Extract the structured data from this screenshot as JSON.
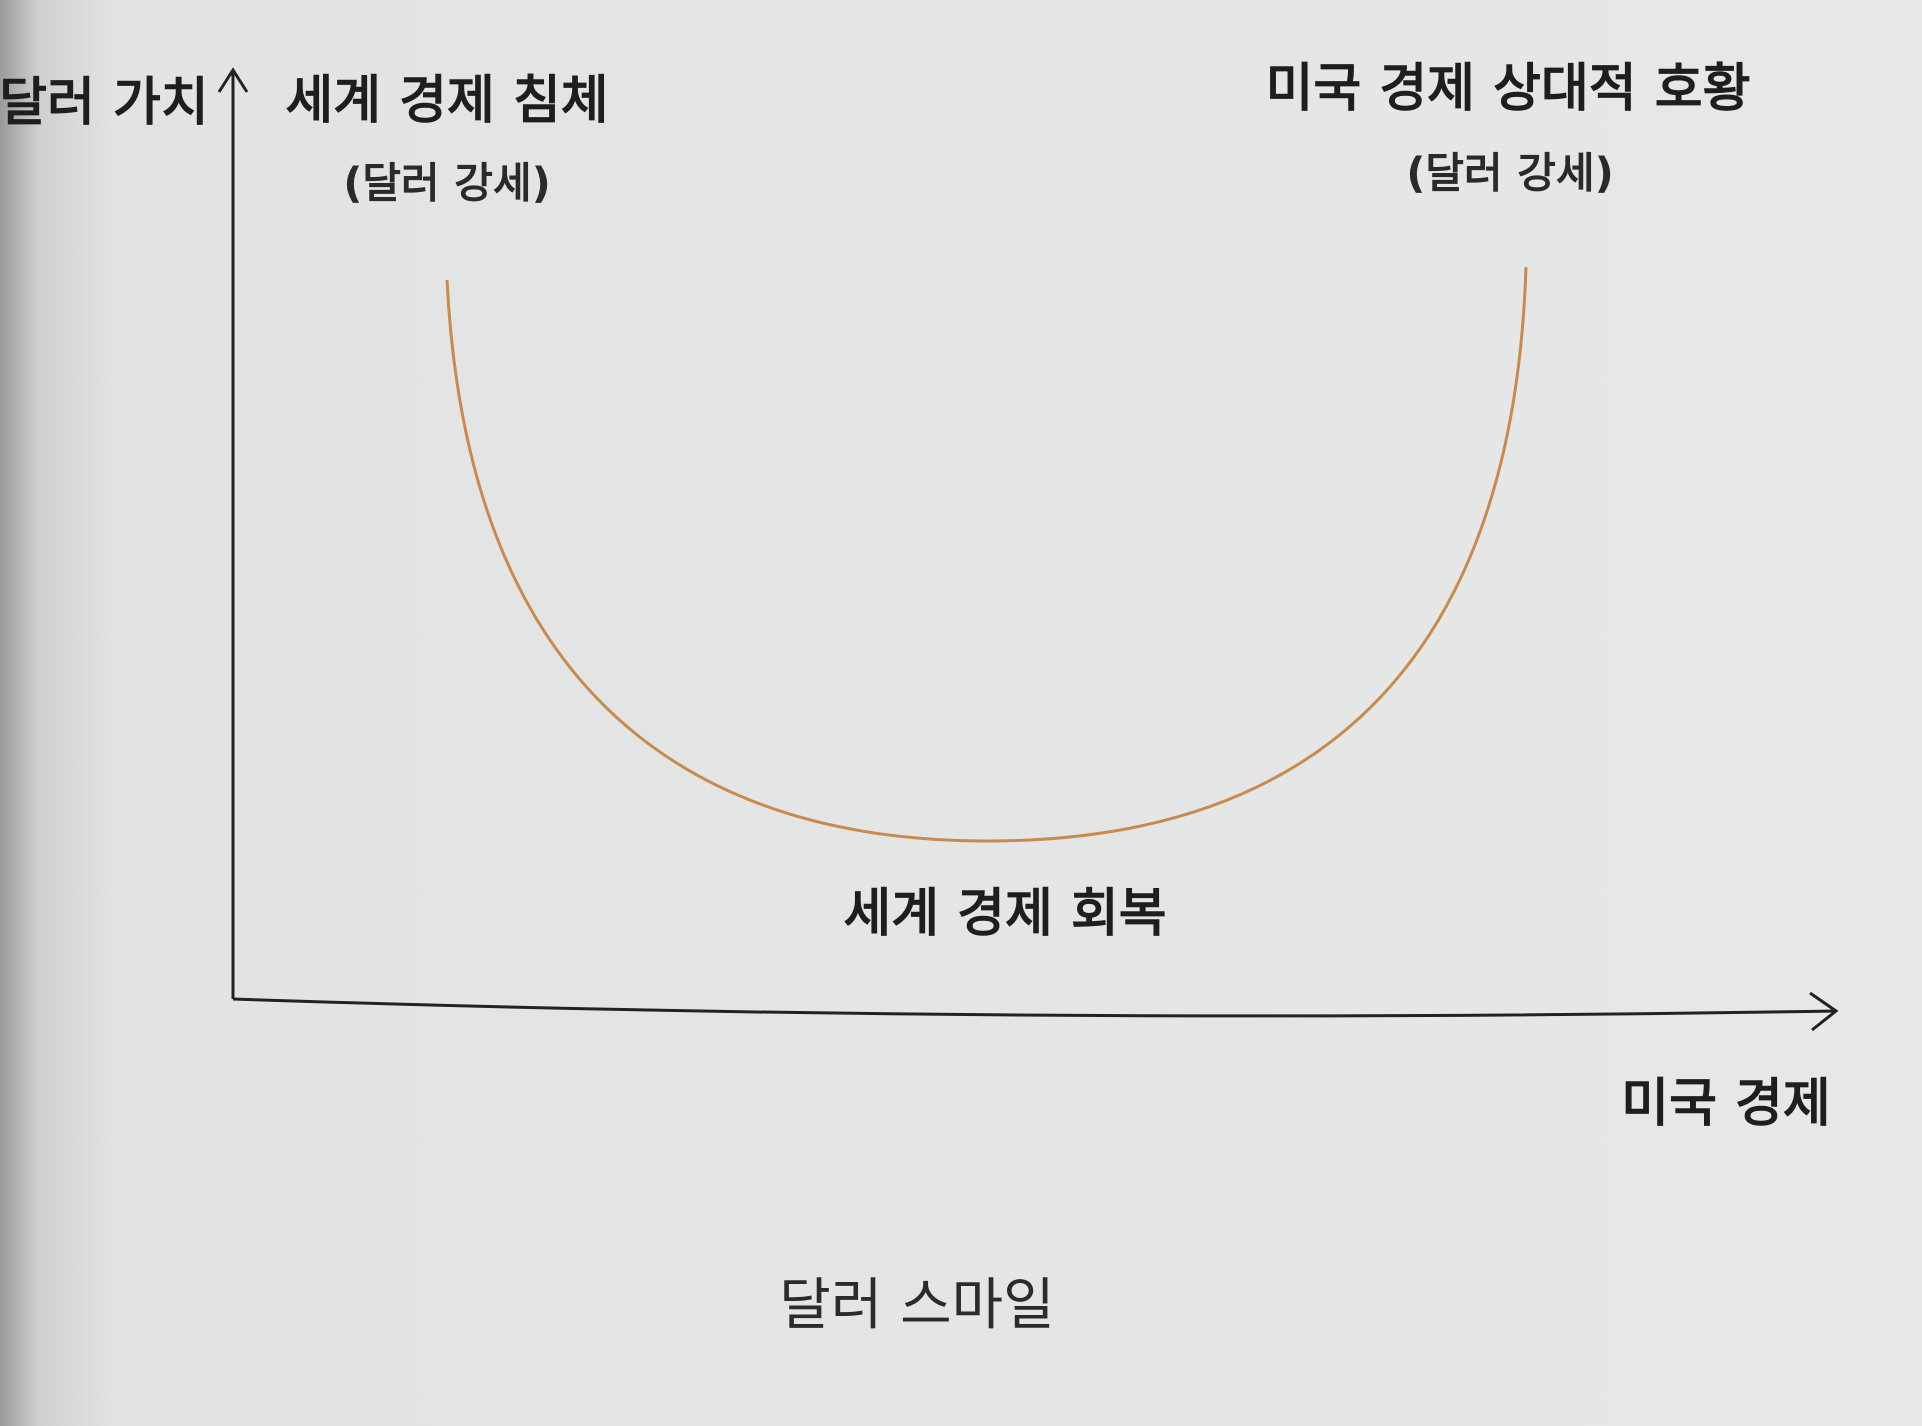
{
  "y_axis_label": "달러 가치",
  "x_axis_label": "미국 경제",
  "left_label": {
    "title": "세계 경제 침체",
    "subtitle": "(달러 강세)"
  },
  "right_label": {
    "title": "미국 경제 상대적 호황",
    "subtitle": "(달러 강세)"
  },
  "bottom_label": "세계 경제 회복",
  "caption": "달러 스마일"
}
